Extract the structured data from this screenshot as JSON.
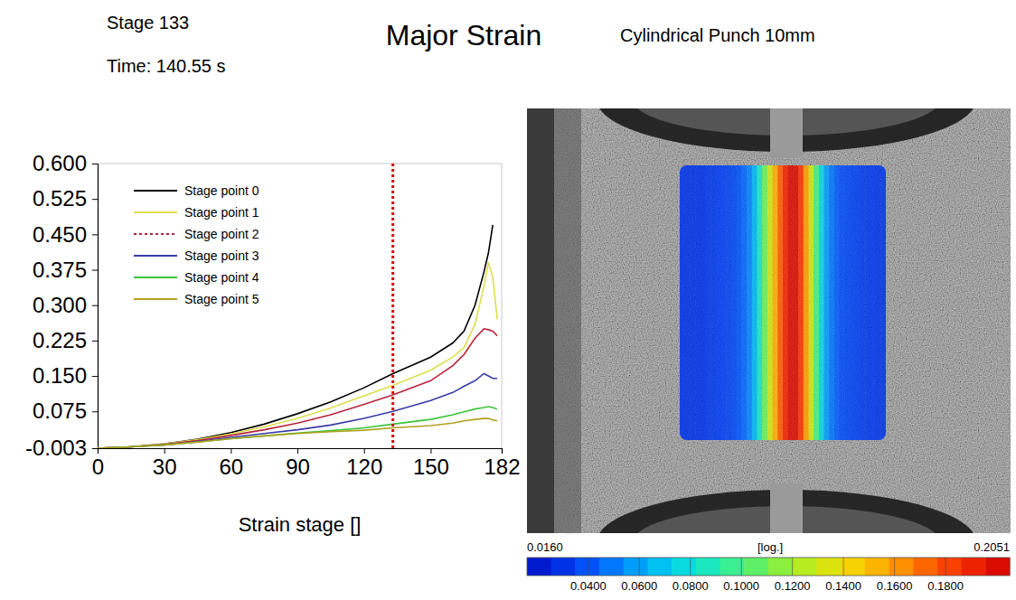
{
  "chart_data": [
    {
      "type": "line",
      "title": "Major Strain",
      "subtitle": "Cylindrical Punch 10mm",
      "annotations": [
        "Stage 133",
        "Time: 140.55 s"
      ],
      "x_label": "Strain stage []",
      "current_stage": 133,
      "x": [
        0,
        15,
        30,
        45,
        60,
        75,
        90,
        105,
        120,
        133,
        150,
        160,
        165,
        170,
        174,
        176,
        178,
        180
      ],
      "series": [
        {
          "name": "Stage point 0",
          "color": "#000000",
          "line_style": "solid",
          "values": [
            -0.003,
            0.0,
            0.006,
            0.016,
            0.03,
            0.048,
            0.07,
            0.095,
            0.125,
            0.155,
            0.19,
            0.22,
            0.245,
            0.3,
            0.37,
            0.41,
            0.47,
            null
          ]
        },
        {
          "name": "Stage point 1",
          "color": "#dede4c",
          "line_style": "solid",
          "values": [
            -0.003,
            0.0,
            0.006,
            0.015,
            0.027,
            0.042,
            0.06,
            0.082,
            0.108,
            0.13,
            0.162,
            0.19,
            0.21,
            0.26,
            0.34,
            0.39,
            0.36,
            0.27
          ]
        },
        {
          "name": "Stage point 2",
          "color": "#b8243c",
          "line_style": "solid",
          "values": [
            -0.003,
            0.0,
            0.005,
            0.013,
            0.024,
            0.036,
            0.05,
            0.068,
            0.09,
            0.11,
            0.14,
            0.172,
            0.195,
            0.23,
            0.25,
            0.248,
            0.245,
            0.235
          ]
        },
        {
          "name": "Stage point 3",
          "color": "#3a3aa8",
          "line_style": "solid",
          "values": [
            -0.003,
            0.0,
            0.004,
            0.011,
            0.02,
            0.028,
            0.036,
            0.046,
            0.06,
            0.075,
            0.098,
            0.115,
            0.128,
            0.14,
            0.155,
            0.15,
            0.145,
            0.145
          ]
        },
        {
          "name": "Stage point 4",
          "color": "#3cc43c",
          "line_style": "solid",
          "values": [
            -0.003,
            0.0,
            0.004,
            0.01,
            0.017,
            0.023,
            0.029,
            0.034,
            0.04,
            0.048,
            0.058,
            0.068,
            0.074,
            0.08,
            0.083,
            0.085,
            0.083,
            0.08
          ]
        },
        {
          "name": "Stage point 5",
          "color": "#b0a020",
          "line_style": "solid",
          "values": [
            -0.003,
            0.0,
            0.004,
            0.01,
            0.017,
            0.023,
            0.028,
            0.032,
            0.035,
            0.04,
            0.045,
            0.05,
            0.055,
            0.058,
            0.06,
            0.06,
            0.057,
            0.055
          ]
        }
      ],
      "xlim": [
        0,
        182
      ],
      "xticks": [
        0,
        30,
        60,
        90,
        120,
        150,
        182
      ],
      "ylim": [
        -0.003,
        0.6
      ],
      "yticks": [
        {
          "value": -0.003,
          "label": "-0.003"
        },
        {
          "value": 0.075,
          "label": "0.075"
        },
        {
          "value": 0.15,
          "label": "0.150"
        },
        {
          "value": 0.225,
          "label": "0.225"
        },
        {
          "value": 0.3,
          "label": "0.300"
        },
        {
          "value": 0.375,
          "label": "0.375"
        },
        {
          "value": 0.45,
          "label": "0.450"
        },
        {
          "value": 0.525,
          "label": "0.525"
        },
        {
          "value": 0.6,
          "label": "0.600"
        }
      ],
      "grid": false,
      "legend": "upper left"
    },
    {
      "type": "heatmap",
      "values": [
        0.03,
        0.03,
        0.03,
        0.03,
        0.03,
        0.032,
        0.032,
        0.033,
        0.034,
        0.035,
        0.037,
        0.04,
        0.045,
        0.052,
        0.065,
        0.085,
        0.11,
        0.13,
        0.155,
        0.175,
        0.19,
        0.2,
        0.2,
        0.185,
        0.16,
        0.13,
        0.1,
        0.075,
        0.058,
        0.048,
        0.042,
        0.038,
        0.036,
        0.035,
        0.034,
        0.033,
        0.032,
        0.032,
        0.031,
        0.031
      ],
      "colorbar": {
        "label": "[log.]",
        "range": [
          0.016,
          0.2051
        ],
        "end_labels": [
          "0.0160",
          "0.2051"
        ],
        "ticks": [
          {
            "value": 0.04,
            "label": "0.0400"
          },
          {
            "value": 0.06,
            "label": "0.0600"
          },
          {
            "value": 0.08,
            "label": "0.0800"
          },
          {
            "value": 0.1,
            "label": "0.1000"
          },
          {
            "value": 0.12,
            "label": "0.1200"
          },
          {
            "value": 0.14,
            "label": "0.1400"
          },
          {
            "value": 0.16,
            "label": "0.1600"
          },
          {
            "value": 0.18,
            "label": "0.1800"
          }
        ]
      }
    }
  ]
}
